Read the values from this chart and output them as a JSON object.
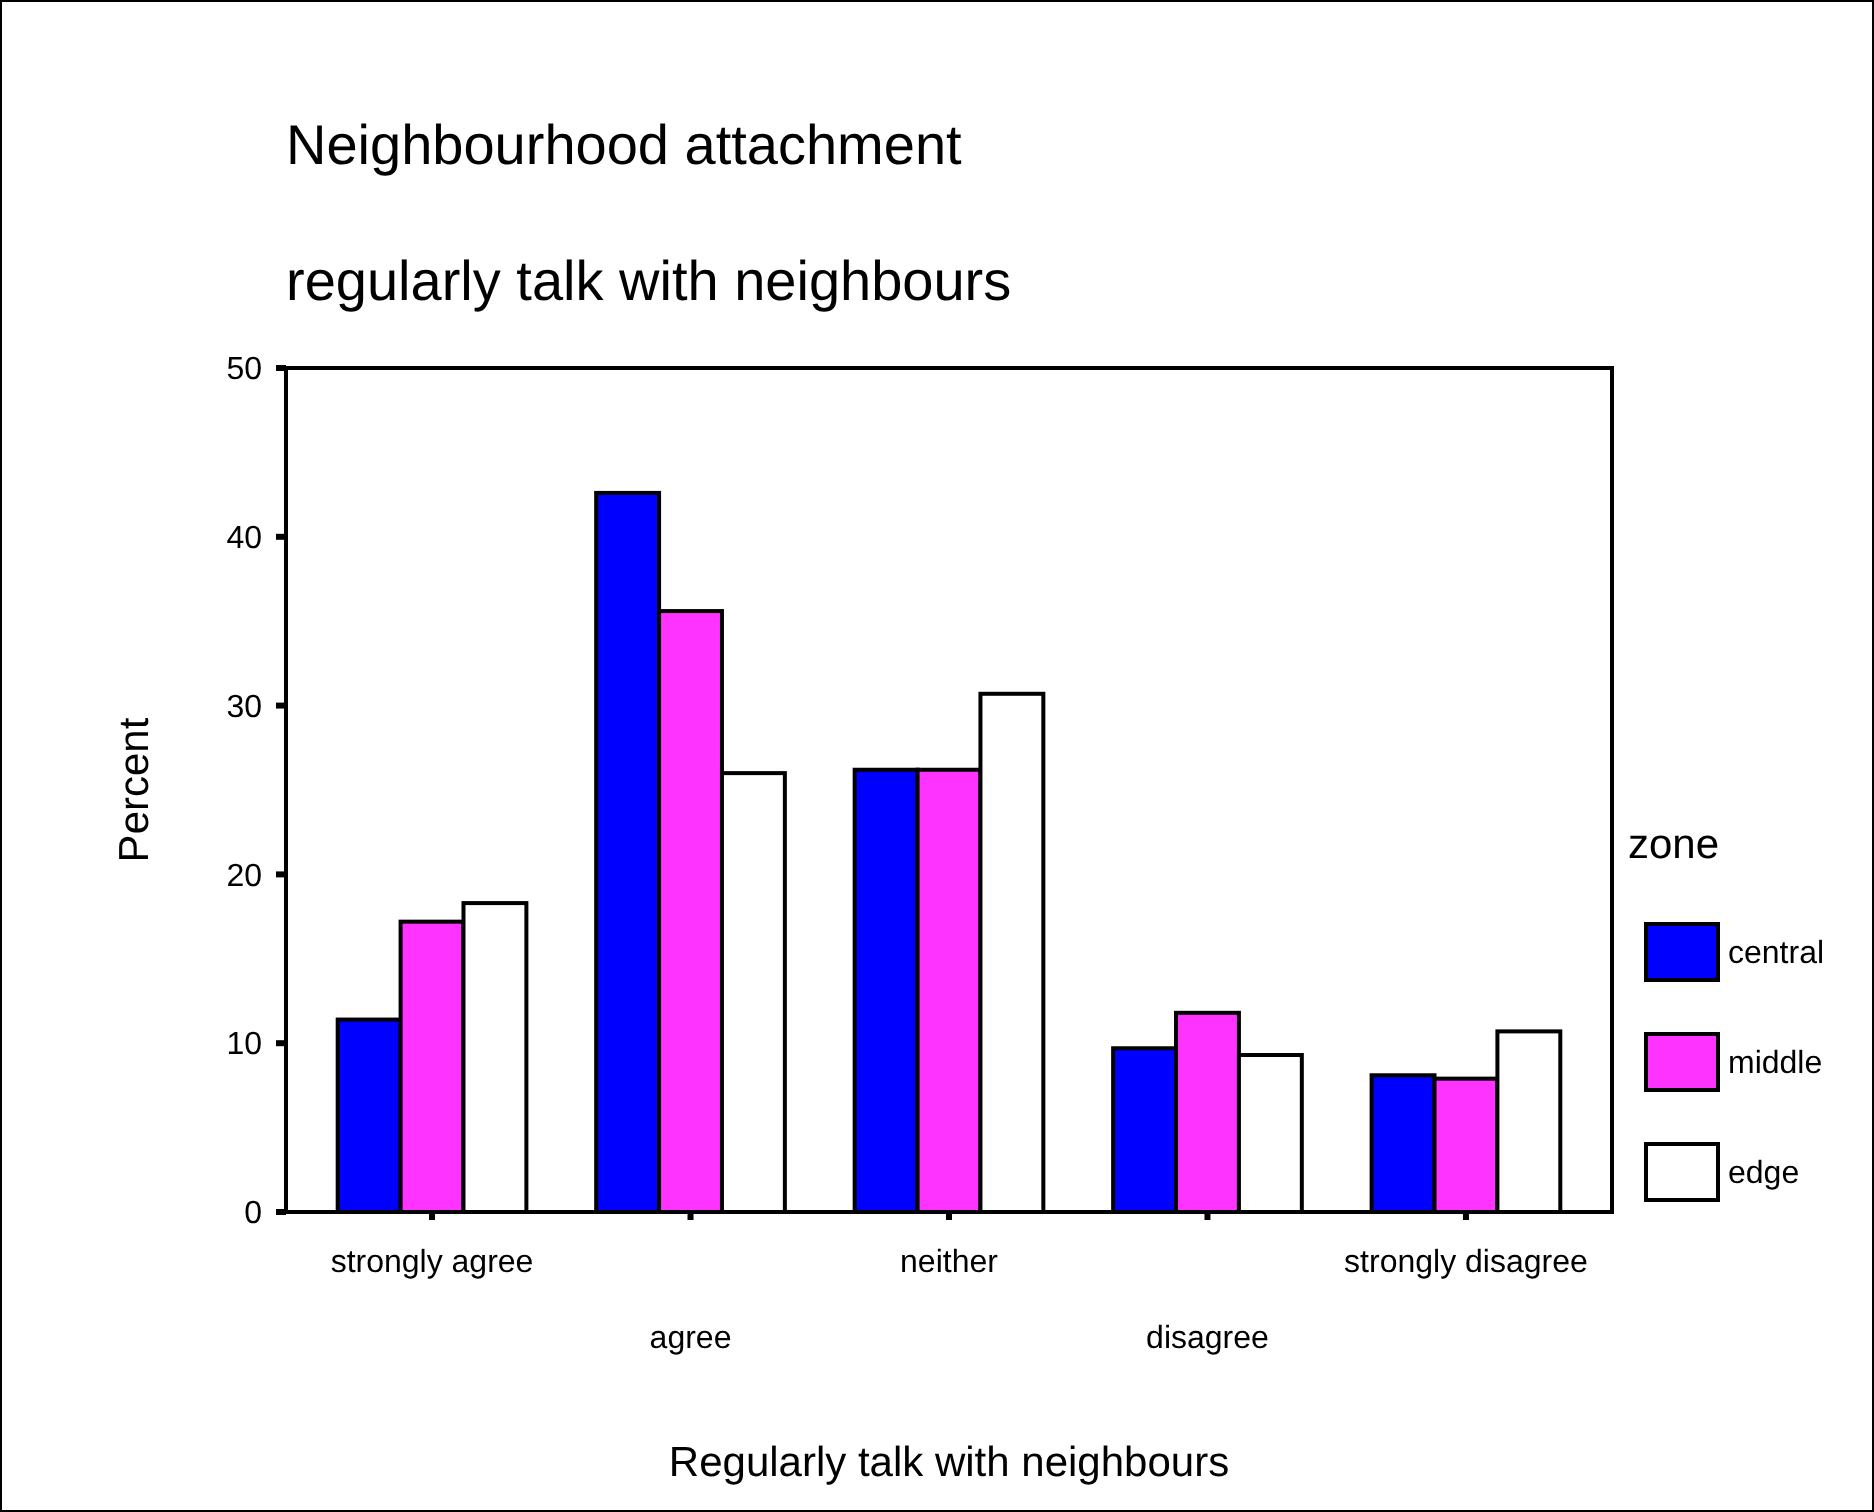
{
  "chart_data": {
    "type": "bar",
    "title": "Neighbourhood attachment",
    "subtitle": "regularly talk with neighbours",
    "xlabel": "Regularly talk with neighbours",
    "ylabel": "Percent",
    "legend_title": "zone",
    "legend": "right",
    "categories": [
      "strongly agree",
      "agree",
      "neither",
      "disagree",
      "strongly disagree"
    ],
    "series": [
      {
        "name": "central",
        "color": "#0000ff",
        "values": [
          11.4,
          42.6,
          26.2,
          9.7,
          8.1
        ]
      },
      {
        "name": "middle",
        "color": "#ff33ff",
        "values": [
          17.2,
          35.6,
          26.2,
          11.8,
          7.9
        ]
      },
      {
        "name": "edge",
        "color": "#ffffff",
        "values": [
          18.3,
          26.0,
          30.7,
          9.3,
          10.7
        ]
      }
    ],
    "ylim": [
      0,
      50
    ],
    "yticks": [
      0,
      10,
      20,
      30,
      40,
      50
    ]
  }
}
